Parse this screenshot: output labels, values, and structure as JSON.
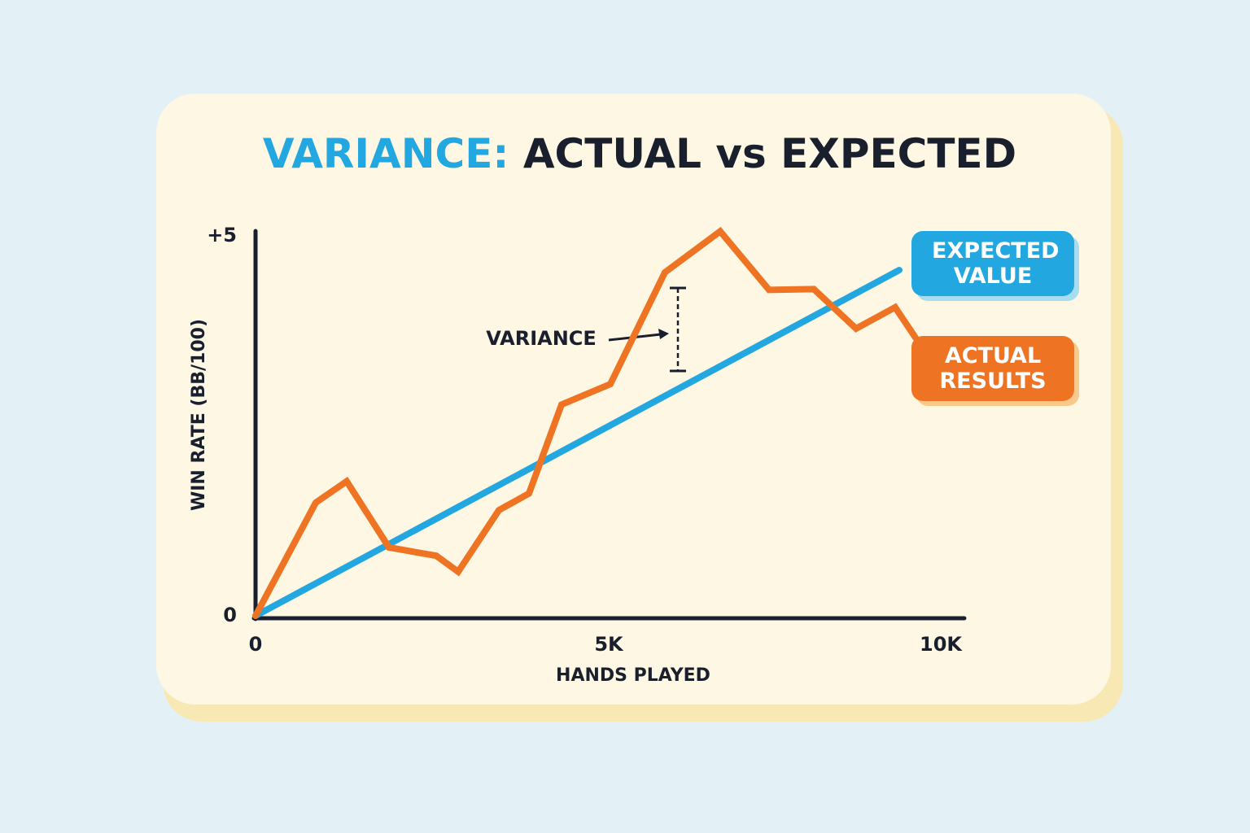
{
  "chart_data": {
    "type": "line",
    "title_highlight": "VARIANCE:",
    "title": "ACTUAL vs EXPECTED",
    "x_label": "HANDS PLAYED",
    "y_label": "WIN RATE (BB/100)",
    "xlim": [
      0,
      10000
    ],
    "ylim": [
      0,
      5
    ],
    "xticks": [
      0,
      {
        "value": 5000,
        "label": "5K"
      },
      {
        "value": 10000,
        "label": "10K"
      }
    ],
    "yticks": [
      0,
      {
        "value": 5,
        "label": "+5"
      }
    ],
    "grid": false,
    "annotation": "VARIANCE",
    "series": [
      {
        "name": "EXPECTED VALUE",
        "color": "#22a7e0",
        "x": [
          0,
          9113
        ],
        "values": [
          0,
          4.55
        ]
      },
      {
        "name": "ACTUAL RESULTS",
        "color": "#ee7424",
        "x": [
          0,
          853,
          1290,
          1889,
          2558,
          2869,
          3445,
          3871,
          4332,
          5023,
          5795,
          6578,
          7270,
          7903,
          8502,
          9055,
          9343
        ],
        "values": [
          0,
          1.49,
          1.77,
          0.9,
          0.79,
          0.58,
          1.39,
          1.61,
          2.78,
          3.05,
          4.52,
          5.06,
          4.29,
          4.3,
          3.78,
          4.06,
          3.66
        ]
      }
    ]
  }
}
